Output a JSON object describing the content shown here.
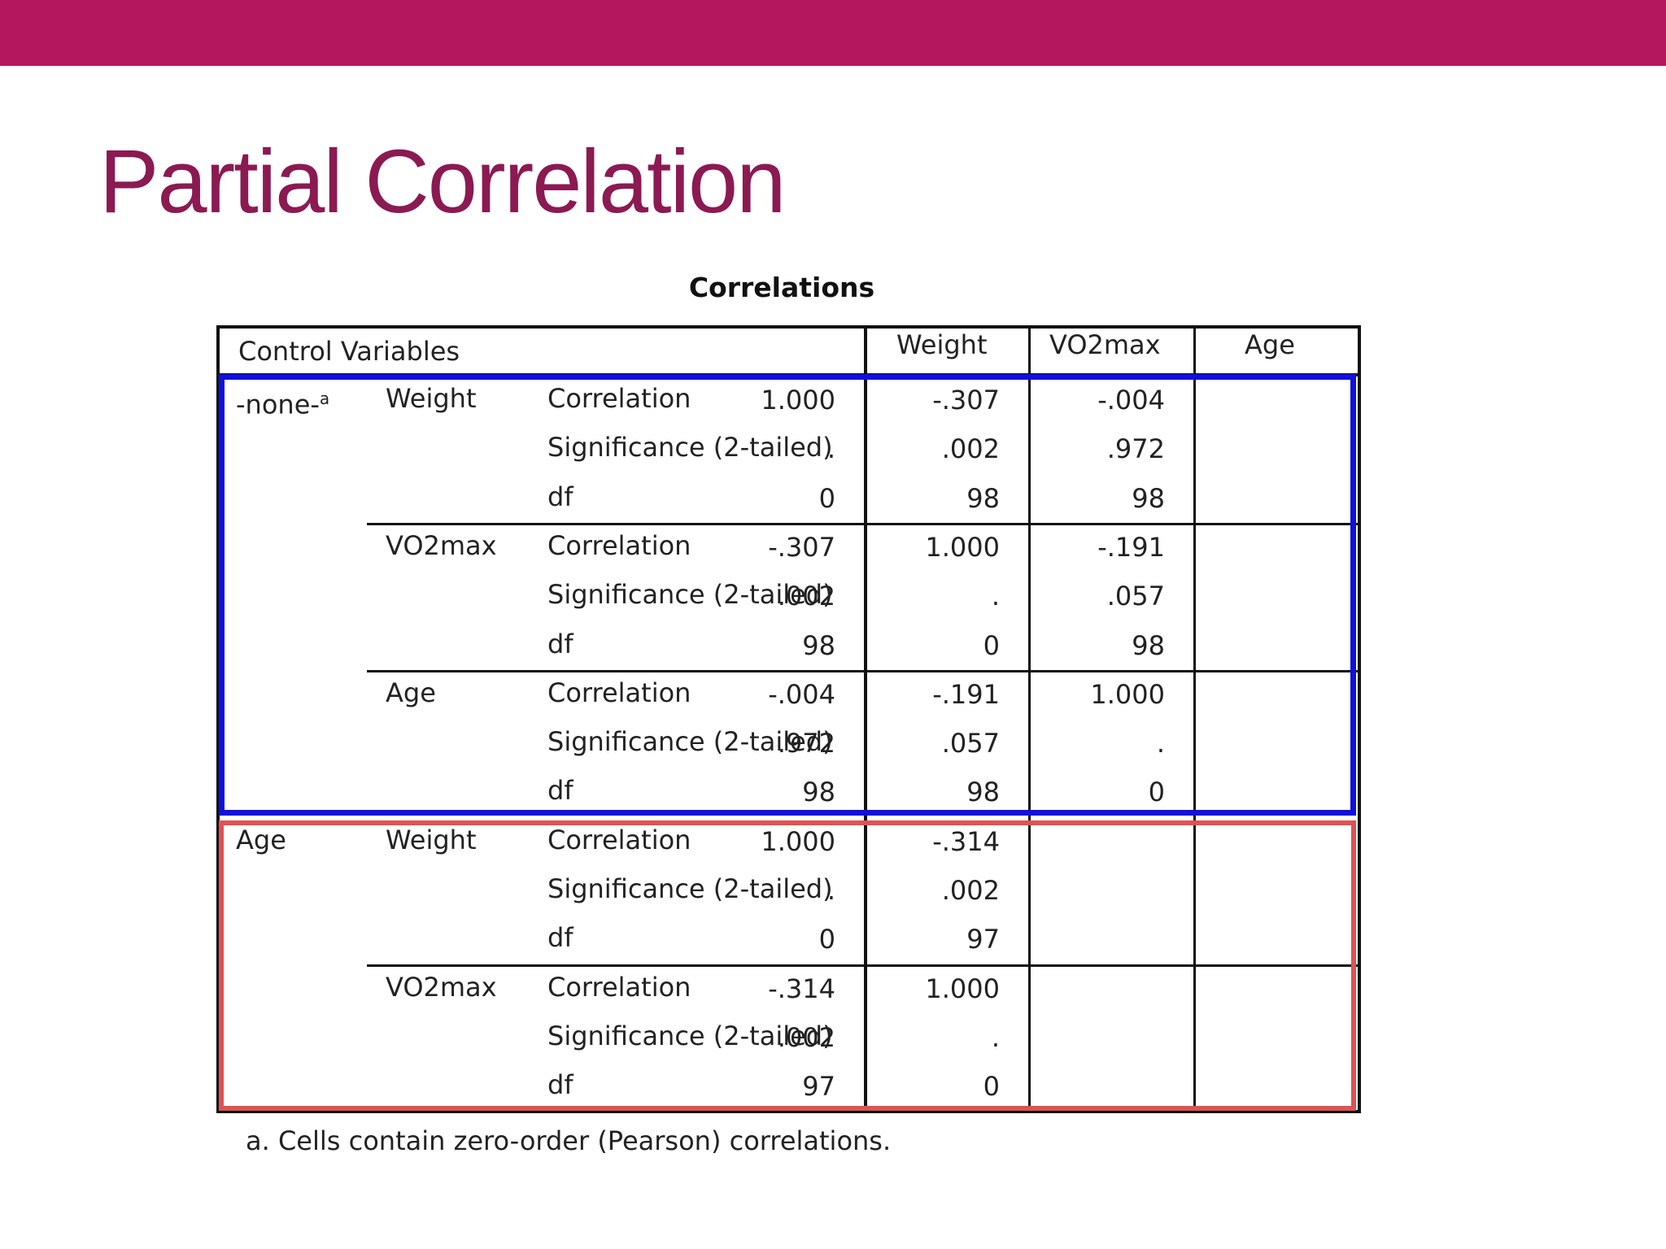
{
  "header": {
    "title": "Partial Correlation"
  },
  "table": {
    "title": "Correlations",
    "columns": [
      "Control Variables",
      "Weight",
      "VO2max",
      "Age"
    ],
    "groups": [
      {
        "control": "-none-",
        "control_note": "a",
        "variables": [
          {
            "name": "Weight",
            "rows": [
              {
                "stat": "Correlation",
                "values": [
                  "1.000",
                  "-.307",
                  "-.004"
                ]
              },
              {
                "stat": "Significance (2-tailed)",
                "values": [
                  ".",
                  ".002",
                  ".972"
                ]
              },
              {
                "stat": "df",
                "values": [
                  "0",
                  "98",
                  "98"
                ]
              }
            ]
          },
          {
            "name": "VO2max",
            "rows": [
              {
                "stat": "Correlation",
                "values": [
                  "-.307",
                  "1.000",
                  "-.191"
                ]
              },
              {
                "stat": "Significance (2-tailed)",
                "values": [
                  ".002",
                  ".",
                  ".057"
                ]
              },
              {
                "stat": "df",
                "values": [
                  "98",
                  "0",
                  "98"
                ]
              }
            ]
          },
          {
            "name": "Age",
            "rows": [
              {
                "stat": "Correlation",
                "values": [
                  "-.004",
                  "-.191",
                  "1.000"
                ]
              },
              {
                "stat": "Significance (2-tailed)",
                "values": [
                  ".972",
                  ".057",
                  "."
                ]
              },
              {
                "stat": "df",
                "values": [
                  "98",
                  "98",
                  "0"
                ]
              }
            ]
          }
        ]
      },
      {
        "control": "Age",
        "variables": [
          {
            "name": "Weight",
            "rows": [
              {
                "stat": "Correlation",
                "values": [
                  "1.000",
                  "-.314"
                ]
              },
              {
                "stat": "Significance (2-tailed)",
                "values": [
                  ".",
                  ".002"
                ]
              },
              {
                "stat": "df",
                "values": [
                  "0",
                  "97"
                ]
              }
            ]
          },
          {
            "name": "VO2max",
            "rows": [
              {
                "stat": "Correlation",
                "values": [
                  "-.314",
                  "1.000"
                ]
              },
              {
                "stat": "Significance (2-tailed)",
                "values": [
                  ".002",
                  "."
                ]
              },
              {
                "stat": "df",
                "values": [
                  "97",
                  "0"
                ]
              }
            ]
          }
        ]
      }
    ],
    "footnote": "a. Cells contain zero-order (Pearson) correlations."
  }
}
